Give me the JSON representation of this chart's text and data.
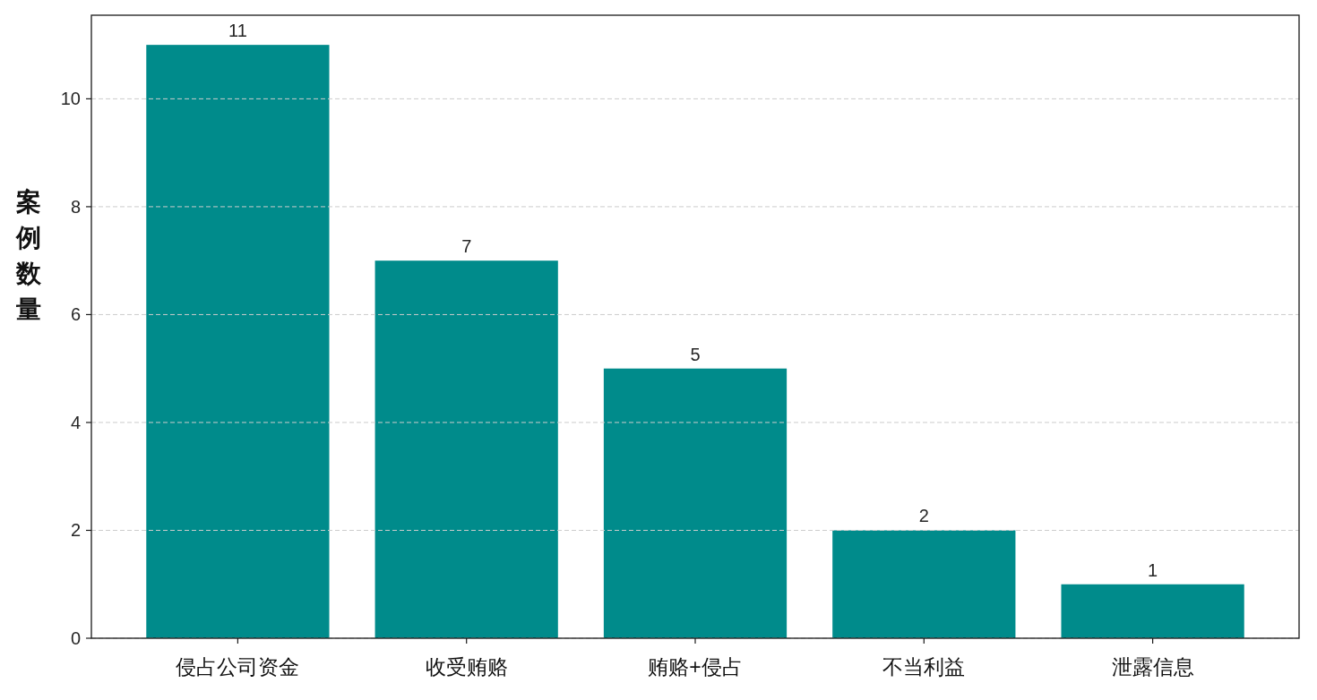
{
  "chart_data": {
    "type": "bar",
    "ylabel": "案例数量",
    "categories": [
      "侵占公司资金",
      "收受贿赂",
      "贿赂+侵占",
      "不当利益",
      "泄露信息"
    ],
    "values": [
      11,
      7,
      5,
      2,
      1
    ],
    "color": "#008b8b",
    "ylim": [
      0,
      11.55
    ],
    "yticks": [
      0,
      2,
      4,
      6,
      8,
      10
    ],
    "grid": "y",
    "data_labels": true
  }
}
